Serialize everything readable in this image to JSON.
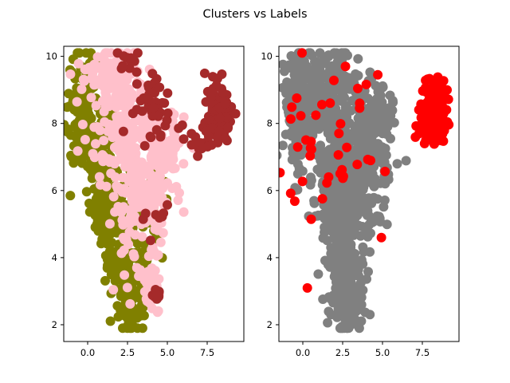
{
  "figure": {
    "title": "Clusters vs Labels"
  },
  "chart_data": [
    {
      "type": "scatter",
      "title": "",
      "xlabel": "",
      "ylabel": "",
      "xlim": [
        -1.5,
        9.8
      ],
      "ylim": [
        1.5,
        10.3
      ],
      "xticks": [
        0.0,
        2.5,
        5.0,
        7.5
      ],
      "xtick_labels": [
        "0.0",
        "2.5",
        "5.0",
        "7.5"
      ],
      "yticks": [
        2,
        4,
        6,
        8,
        10
      ],
      "ytick_labels": [
        "2",
        "4",
        "6",
        "8",
        "10"
      ],
      "grid": false,
      "legend": "none",
      "series": [
        {
          "color": "#808000",
          "count": 520,
          "regions": [
            {
              "cx": -0.3,
              "cy": 8.5,
              "sx": 0.45,
              "sy": 0.9,
              "w": 0.24
            },
            {
              "cx": 0.9,
              "cy": 7.3,
              "sx": 0.7,
              "sy": 0.6,
              "w": 0.12
            },
            {
              "cx": 1.2,
              "cy": 5.8,
              "sx": 0.55,
              "sy": 0.7,
              "w": 0.2
            },
            {
              "cx": 2.4,
              "cy": 4.0,
              "sx": 0.6,
              "sy": 0.9,
              "w": 0.22
            },
            {
              "cx": 2.7,
              "cy": 2.6,
              "sx": 0.45,
              "sy": 0.45,
              "w": 0.12
            },
            {
              "cx": 3.8,
              "cy": 5.5,
              "sx": 0.6,
              "sy": 0.6,
              "w": 0.1
            }
          ]
        },
        {
          "color": "#ffc0cb",
          "count": 560,
          "regions": [
            {
              "cx": 1.5,
              "cy": 9.4,
              "sx": 0.9,
              "sy": 0.45,
              "w": 0.2
            },
            {
              "cx": 2.8,
              "cy": 7.6,
              "sx": 1.1,
              "sy": 0.7,
              "w": 0.3
            },
            {
              "cx": 3.4,
              "cy": 6.0,
              "sx": 1.0,
              "sy": 0.6,
              "w": 0.22
            },
            {
              "cx": 4.6,
              "cy": 7.4,
              "sx": 0.6,
              "sy": 0.55,
              "w": 0.12
            },
            {
              "cx": 3.2,
              "cy": 4.3,
              "sx": 0.7,
              "sy": 0.8,
              "w": 0.1
            },
            {
              "cx": 4.0,
              "cy": 3.0,
              "sx": 0.25,
              "sy": 0.35,
              "w": 0.06
            }
          ]
        },
        {
          "color": "#a52a2a",
          "count": 210,
          "regions": [
            {
              "cx": 8.2,
              "cy": 8.3,
              "sx": 0.4,
              "sy": 0.45,
              "w": 0.62
            },
            {
              "cx": 4.3,
              "cy": 8.6,
              "sx": 0.7,
              "sy": 0.6,
              "w": 0.18
            },
            {
              "cx": 2.5,
              "cy": 9.9,
              "sx": 0.35,
              "sy": 0.15,
              "w": 0.06
            },
            {
              "cx": 7.0,
              "cy": 7.3,
              "sx": 0.4,
              "sy": 0.15,
              "w": 0.06
            },
            {
              "cx": 4.5,
              "cy": 5.2,
              "sx": 0.4,
              "sy": 0.3,
              "w": 0.04
            },
            {
              "cx": 4.3,
              "cy": 2.9,
              "sx": 0.15,
              "sy": 0.1,
              "w": 0.04
            }
          ]
        }
      ]
    },
    {
      "type": "scatter",
      "title": "",
      "xlabel": "",
      "ylabel": "",
      "xlim": [
        -1.5,
        9.8
      ],
      "ylim": [
        1.5,
        10.3
      ],
      "xticks": [
        0.0,
        2.5,
        5.0,
        7.5
      ],
      "xtick_labels": [
        "0.0",
        "2.5",
        "5.0",
        "7.5"
      ],
      "yticks": [
        2,
        4,
        6,
        8,
        10
      ],
      "ytick_labels": [
        "2",
        "4",
        "6",
        "8",
        "10"
      ],
      "grid": false,
      "legend": "none",
      "series": [
        {
          "color": "#808080",
          "count": 1150,
          "regions": [
            {
              "cx": -0.3,
              "cy": 8.5,
              "sx": 0.45,
              "sy": 0.9,
              "w": 0.13
            },
            {
              "cx": 1.5,
              "cy": 9.4,
              "sx": 0.9,
              "sy": 0.45,
              "w": 0.1
            },
            {
              "cx": 2.6,
              "cy": 7.6,
              "sx": 1.2,
              "sy": 0.8,
              "w": 0.24
            },
            {
              "cx": 2.8,
              "cy": 5.9,
              "sx": 1.1,
              "sy": 0.7,
              "w": 0.2
            },
            {
              "cx": 2.6,
              "cy": 4.1,
              "sx": 0.7,
              "sy": 0.9,
              "w": 0.17
            },
            {
              "cx": 2.8,
              "cy": 2.6,
              "sx": 0.45,
              "sy": 0.45,
              "w": 0.08
            },
            {
              "cx": 4.5,
              "cy": 8.0,
              "sx": 0.7,
              "sy": 0.8,
              "w": 0.08
            }
          ]
        },
        {
          "color": "#ff0000",
          "count": 240,
          "regions": [
            {
              "cx": 8.2,
              "cy": 8.3,
              "sx": 0.4,
              "sy": 0.45,
              "w": 0.82
            },
            {
              "cx": 2.0,
              "cy": 7.0,
              "sx": 1.8,
              "sy": 1.6,
              "w": 0.18
            }
          ]
        }
      ]
    }
  ]
}
